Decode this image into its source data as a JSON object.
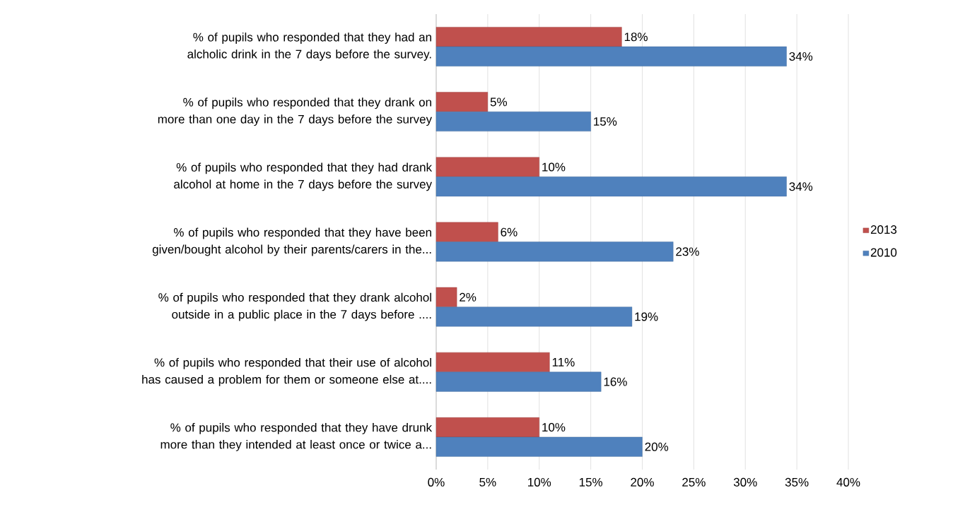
{
  "chart_data": {
    "type": "bar",
    "orientation": "horizontal",
    "categories": [
      "% of pupils who responded that they had an alcholic drink in the 7 days before the survey.",
      "% of pupils who responded that they drank on more than one day in the 7 days before the survey",
      "% of pupils who responded that they had drank alcohol at home in the 7 days before the survey",
      "% of pupils who responded that they have been given/bought alcohol by their parents/carers in the...",
      "% of pupils who responded that they drank alcohol outside in a public place in the 7 days before ....",
      "% of pupils who responded that their use of alcohol has caused a problem for them or someone else at....",
      "% of pupils who responded that they have drunk more than they intended at least once or twice a..."
    ],
    "series": [
      {
        "name": "2013",
        "color": "#c0504d",
        "values": [
          18,
          5,
          10,
          6,
          2,
          11,
          10
        ],
        "value_labels": [
          "18%",
          "5%",
          "10%",
          "6%",
          "2%",
          "11%",
          "10%"
        ]
      },
      {
        "name": "2010",
        "color": "#4f81bd",
        "values": [
          34,
          15,
          34,
          23,
          19,
          16,
          20
        ],
        "value_labels": [
          "34%",
          "15%",
          "34%",
          "23%",
          "19%",
          "16%",
          "20%"
        ]
      }
    ],
    "xlim": [
      0,
      40
    ],
    "xticks": [
      {
        "value": 0,
        "label": "0%"
      },
      {
        "value": 5,
        "label": "5%"
      },
      {
        "value": 10,
        "label": "10%"
      },
      {
        "value": 15,
        "label": "15%"
      },
      {
        "value": 20,
        "label": "20%"
      },
      {
        "value": 25,
        "label": "25%"
      },
      {
        "value": 30,
        "label": "30%"
      },
      {
        "value": 35,
        "label": "35%"
      },
      {
        "value": 40,
        "label": "40%"
      }
    ],
    "grid": "x",
    "legend": "right"
  }
}
